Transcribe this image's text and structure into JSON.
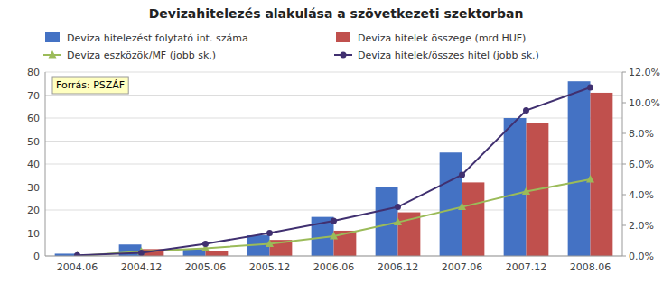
{
  "chart_data": {
    "type": "bar",
    "title": "Devizahitelezés alakulása a szövetkezeti szektorban",
    "categories": [
      "2004.06",
      "2004.12",
      "2005.06",
      "2005.12",
      "2006.06",
      "2006.12",
      "2007.06",
      "2007.12",
      "2008.06"
    ],
    "series": [
      {
        "name": "Deviza hitelezést folytató int. száma",
        "type": "bar",
        "color": "#4472C4",
        "values": [
          1,
          5,
          3,
          9,
          17,
          30,
          45,
          60,
          76
        ]
      },
      {
        "name": "Deviza hitelek összege (mrd HUF)",
        "type": "bar",
        "color": "#C0504D",
        "values": [
          0,
          3,
          2,
          7,
          11,
          19,
          32,
          58,
          71
        ]
      },
      {
        "name": "Deviza eszközök/MF (jobb sk.)",
        "type": "line",
        "axis": "y2",
        "color": "#9BBB59",
        "marker": "triangle",
        "values": [
          0.0,
          0.3,
          0.5,
          0.8,
          1.3,
          2.2,
          3.2,
          4.2,
          5.0
        ]
      },
      {
        "name": "Deviza hitelek/összes hitel (jobb sk.)",
        "type": "line",
        "axis": "y2",
        "color": "#403070",
        "marker": "circle",
        "values": [
          0.05,
          0.2,
          0.8,
          1.5,
          2.3,
          3.2,
          5.3,
          9.5,
          11.0
        ]
      }
    ],
    "ylim": [
      0,
      80
    ],
    "yticks": [
      0,
      10,
      20,
      30,
      40,
      50,
      60,
      70,
      80
    ],
    "y2lim": [
      0,
      12
    ],
    "y2ticks": [
      {
        "value": 0,
        "label": "0.0%"
      },
      {
        "value": 2,
        "label": "2.0%"
      },
      {
        "value": 4,
        "label": "4.0%"
      },
      {
        "value": 6,
        "label": "6.0%"
      },
      {
        "value": 8,
        "label": "8.0%"
      },
      {
        "value": 10,
        "label": "10.0%"
      },
      {
        "value": 12,
        "label": "12.0%"
      }
    ],
    "grid": true,
    "legend": "top",
    "annotations": [
      "Forrás: PSZÁF"
    ]
  }
}
